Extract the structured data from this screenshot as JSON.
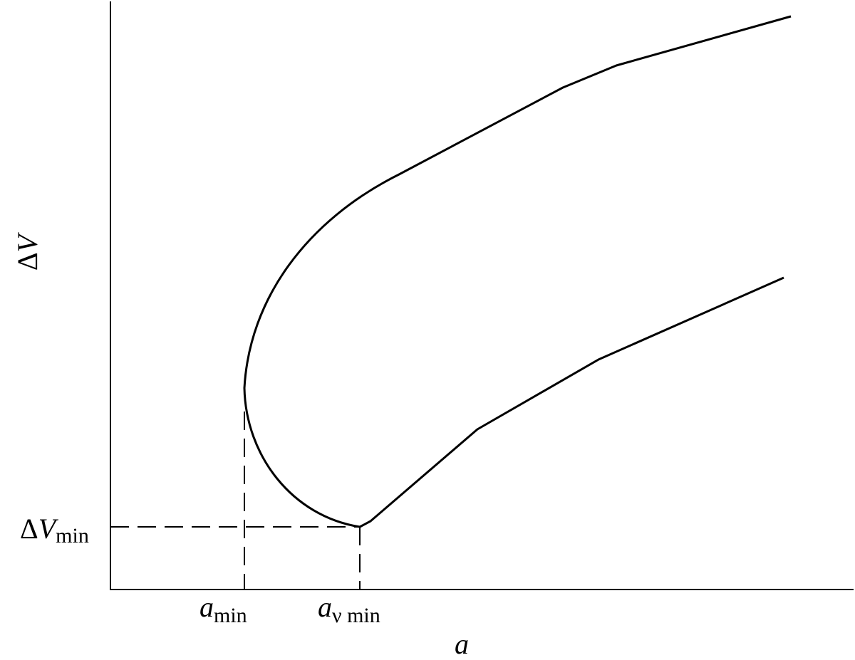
{
  "axes": {
    "y_label": {
      "symbol": "Δ",
      "var": "V"
    },
    "x_label": "a"
  },
  "annotations": {
    "dv_min": {
      "symbol": "Δ",
      "var": "V",
      "sub": "min"
    },
    "a_min": {
      "var": "a",
      "sub": "min"
    },
    "a_v_min": {
      "var": "a",
      "sub": "ν min"
    }
  }
}
